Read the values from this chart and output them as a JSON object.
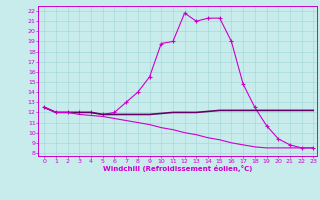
{
  "xlabel": "Windchill (Refroidissement éolien,°C)",
  "bg_color": "#c8ecec",
  "grid_color": "#b0d8d8",
  "line_color": "#cc00cc",
  "dark_line_color": "#660066",
  "xmin": 0,
  "xmax": 23,
  "ymin": 8,
  "ymax": 22,
  "x_hours": [
    0,
    1,
    2,
    3,
    4,
    5,
    6,
    7,
    8,
    9,
    10,
    11,
    12,
    13,
    14,
    15,
    16,
    17,
    18,
    19,
    20,
    21,
    22,
    23
  ],
  "curve1_y": [
    12.5,
    12.0,
    12.0,
    12.0,
    12.0,
    11.8,
    12.0,
    13.0,
    14.0,
    15.5,
    18.8,
    19.0,
    21.8,
    21.0,
    21.3,
    21.3,
    19.0,
    14.8,
    12.5,
    10.7,
    9.4,
    8.8,
    8.5,
    8.5
  ],
  "curve2_y": [
    12.5,
    12.0,
    12.0,
    12.0,
    12.0,
    11.8,
    11.8,
    11.8,
    11.8,
    11.8,
    11.9,
    12.0,
    12.0,
    12.0,
    12.1,
    12.2,
    12.2,
    12.2,
    12.2,
    12.2,
    12.2,
    12.2,
    12.2,
    12.2
  ],
  "curve3_y": [
    12.5,
    12.0,
    12.0,
    11.8,
    11.7,
    11.6,
    11.4,
    11.2,
    11.0,
    10.8,
    10.5,
    10.3,
    10.0,
    9.8,
    9.5,
    9.3,
    9.0,
    8.8,
    8.6,
    8.5,
    8.5,
    8.5,
    8.5,
    8.5
  ]
}
